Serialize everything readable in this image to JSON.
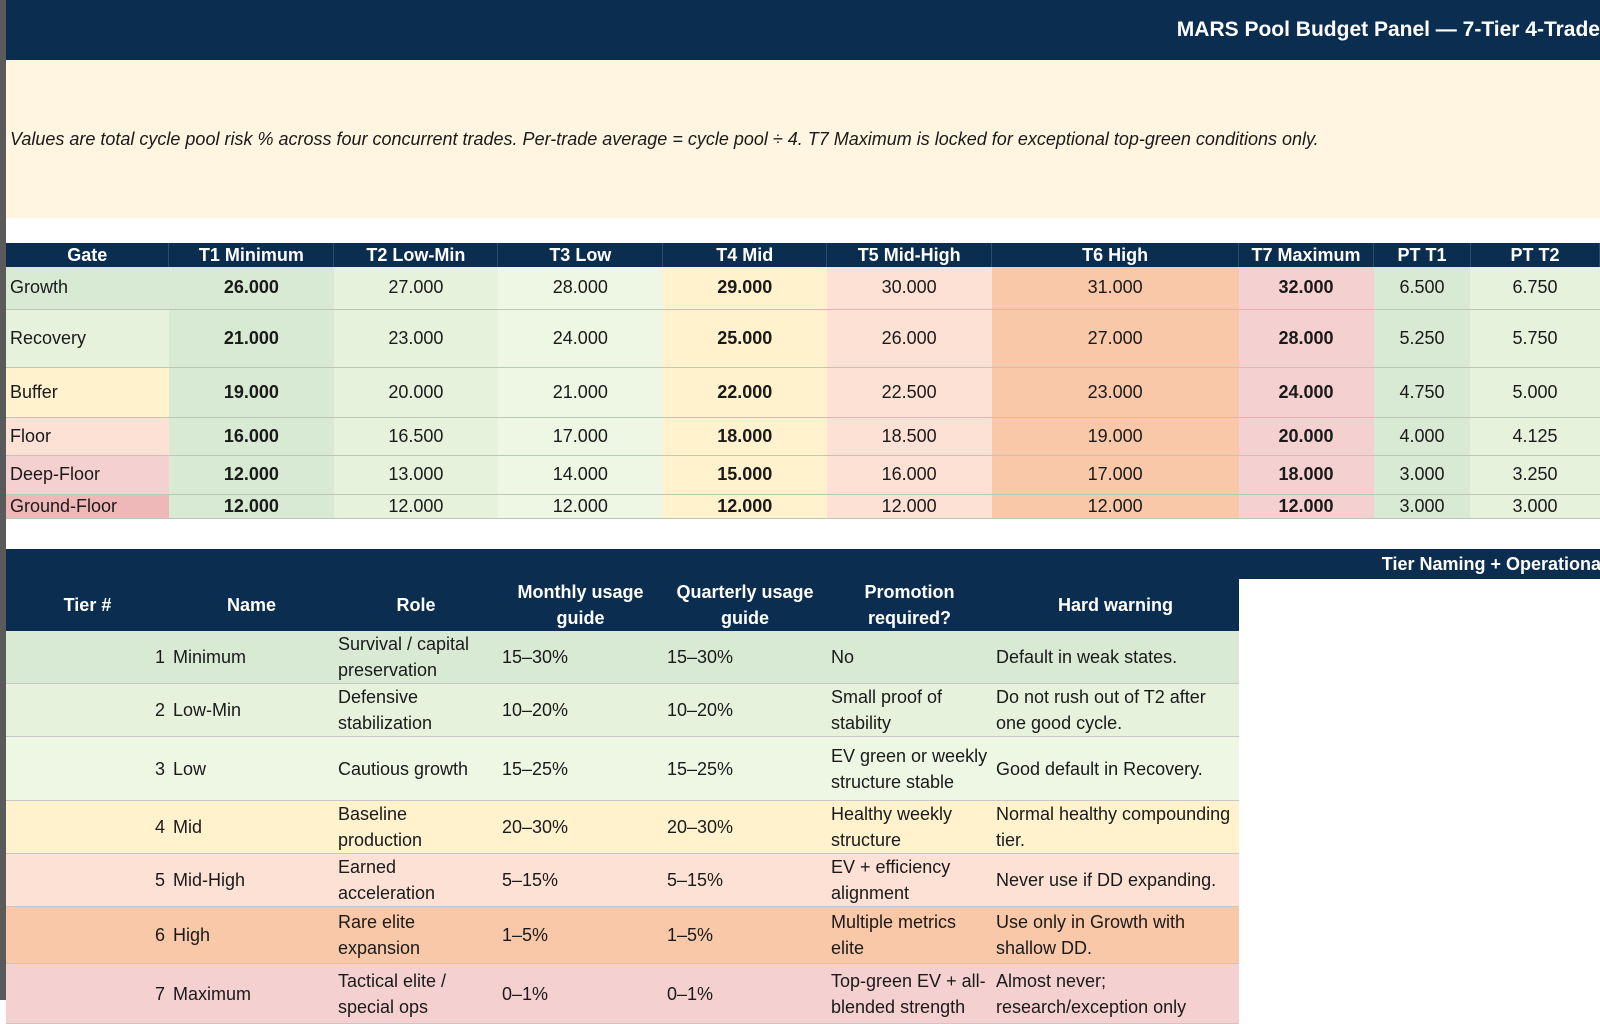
{
  "title": "MARS Pool Budget Panel — 7-Tier 4-Trade",
  "note": "Values are total cycle pool risk % across four concurrent trades. Per-trade average = cycle pool ÷ 4. T7 Maximum is locked for exceptional top-green conditions only.",
  "budget": {
    "headers": [
      "Gate",
      "T1 Minimum",
      "T2 Low-Min",
      "T3 Low",
      "T4 Mid",
      "T5 Mid-High",
      "T6 High",
      "T7 Maximum",
      "PT T1",
      "PT T2"
    ],
    "rows": [
      {
        "gate": "Growth",
        "gate_color": "#d8ead3",
        "values": [
          "26.000",
          "27.000",
          "28.000",
          "29.000",
          "30.000",
          "31.000",
          "32.000",
          "6.500",
          "6.750"
        ]
      },
      {
        "gate": "Recovery",
        "gate_color": "#e6f2dc",
        "values": [
          "21.000",
          "23.000",
          "24.000",
          "25.000",
          "26.000",
          "27.000",
          "28.000",
          "5.250",
          "5.750"
        ]
      },
      {
        "gate": "Buffer",
        "gate_color": "#fff2cc",
        "values": [
          "19.000",
          "20.000",
          "21.000",
          "22.000",
          "22.500",
          "23.000",
          "24.000",
          "4.750",
          "5.000"
        ]
      },
      {
        "gate": "Floor",
        "gate_color": "#fde1d5",
        "values": [
          "16.000",
          "16.500",
          "17.000",
          "18.000",
          "18.500",
          "19.000",
          "20.000",
          "4.000",
          "4.125"
        ]
      },
      {
        "gate": "Deep-Floor",
        "gate_color": "#f5d0d0",
        "values": [
          "12.000",
          "13.000",
          "14.000",
          "15.000",
          "16.000",
          "17.000",
          "18.000",
          "3.000",
          "3.250"
        ]
      },
      {
        "gate": "Ground-Floor",
        "gate_color": "#efb8b8",
        "values": [
          "12.000",
          "12.000",
          "12.000",
          "12.000",
          "12.000",
          "12.000",
          "12.000",
          "3.000",
          "3.000"
        ]
      }
    ]
  },
  "section2_title": "Tier Naming + Operational Funct",
  "tiers": {
    "headers": [
      "Tier #",
      "Name",
      "Role",
      "Monthly usage guide",
      "Quarterly usage guide",
      "Promotion required?",
      "Hard warning"
    ],
    "rows": [
      {
        "num": "1",
        "name": "Minimum",
        "role": "Survival / capital preservation",
        "monthly": "15–30%",
        "quarterly": "15–30%",
        "promotion": "No",
        "warning": "Default in weak states.",
        "color": "#d8ead3"
      },
      {
        "num": "2",
        "name": "Low-Min",
        "role": "Defensive stabilization",
        "monthly": "10–20%",
        "quarterly": "10–20%",
        "promotion": "Small proof of stability",
        "warning": "Do not rush out of T2 after one good cycle.",
        "color": "#e6f2dc"
      },
      {
        "num": "3",
        "name": "Low",
        "role": "Cautious growth",
        "monthly": "15–25%",
        "quarterly": "15–25%",
        "promotion": "EV green or weekly structure stable",
        "warning": "Good default in Recovery.",
        "color": "#eef6e4"
      },
      {
        "num": "4",
        "name": "Mid",
        "role": "Baseline production",
        "monthly": "20–30%",
        "quarterly": "20–30%",
        "promotion": "Healthy weekly structure",
        "warning": "Normal healthy compounding tier.",
        "color": "#fff2cc"
      },
      {
        "num": "5",
        "name": "Mid-High",
        "role": "Earned acceleration",
        "monthly": "5–15%",
        "quarterly": "5–15%",
        "promotion": "EV + efficiency alignment",
        "warning": "Never use if DD expanding.",
        "color": "#fde1d5"
      },
      {
        "num": "6",
        "name": "High",
        "role": "Rare elite expansion",
        "monthly": "1–5%",
        "quarterly": "1–5%",
        "promotion": "Multiple metrics elite",
        "warning": "Use only in Growth with shallow DD.",
        "color": "#f8c8a8"
      },
      {
        "num": "7",
        "name": "Maximum",
        "role": "Tactical elite / special ops",
        "monthly": "0–1%",
        "quarterly": "0–1%",
        "promotion": "Top-green EV + all-blended strength",
        "warning": "Almost never; research/exception only",
        "color": "#f5d0d0"
      }
    ]
  }
}
